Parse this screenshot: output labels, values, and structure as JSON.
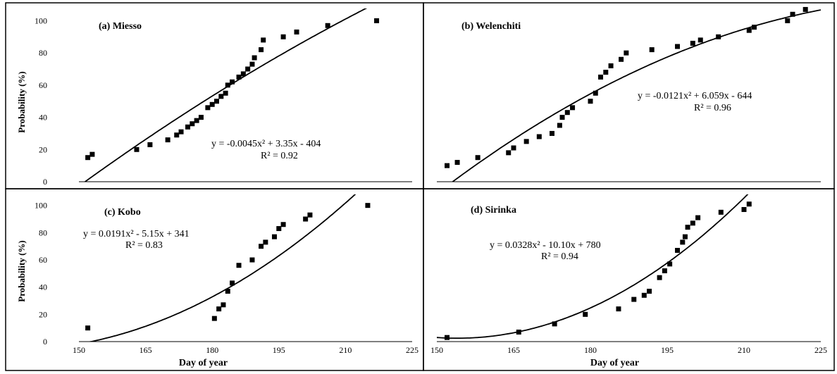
{
  "chart_data": [
    {
      "type": "scatter",
      "title": "(a) Miesso",
      "xlabel": "",
      "ylabel": "Probability (%)",
      "xlim": [
        150,
        225
      ],
      "ylim": [
        0,
        105
      ],
      "yticks": [
        "0",
        "20",
        "40",
        "60",
        "80",
        "100"
      ],
      "xticks": [],
      "equation": "y = -0.0045x² + 3.35x - 404",
      "r2": "R² = 0.92",
      "fit": {
        "a": -0.0045,
        "b": 3.35,
        "c": -404
      },
      "x": [
        152,
        153,
        163,
        166,
        170,
        172,
        173,
        174.5,
        175.5,
        176.5,
        177.5,
        179,
        180,
        181,
        182,
        183,
        183.5,
        184.5,
        186,
        187,
        188,
        189,
        189.5,
        191,
        191.5,
        196,
        199,
        206,
        217
      ],
      "y": [
        15,
        17,
        20,
        23,
        26,
        29,
        31,
        34,
        36,
        38,
        40,
        46,
        48,
        50,
        53,
        55,
        60,
        62,
        65,
        67,
        70,
        73,
        77,
        82,
        88,
        90,
        93,
        97,
        100
      ]
    },
    {
      "type": "scatter",
      "title": "(b) Welenchiti",
      "xlabel": "",
      "ylabel": "",
      "xlim": [
        150,
        225
      ],
      "ylim": [
        0,
        105
      ],
      "yticks": [],
      "xticks": [],
      "equation": "y = -0.0121x² + 6.059x - 644",
      "r2": "R² = 0.96",
      "fit": {
        "a": -0.0121,
        "b": 6.059,
        "c": -644
      },
      "x": [
        152,
        154,
        158,
        164,
        165,
        167.5,
        170,
        172.5,
        174,
        174.5,
        175.5,
        176.5,
        180,
        181,
        182,
        183,
        184,
        186,
        187,
        192,
        197,
        200,
        201.5,
        205,
        211,
        212,
        218.5,
        219.5,
        222
      ],
      "y": [
        10,
        12,
        15,
        18,
        21,
        25,
        28,
        30,
        35,
        40,
        43,
        46,
        50,
        55,
        65,
        68,
        72,
        76,
        80,
        82,
        84,
        86,
        88,
        90,
        94,
        96,
        100,
        104,
        107
      ]
    },
    {
      "type": "scatter",
      "title": "(c) Kobo",
      "xlabel": "Day of year",
      "ylabel": "Probability (%)",
      "xlim": [
        150,
        225
      ],
      "ylim": [
        0,
        105
      ],
      "yticks": [
        "0",
        "20",
        "40",
        "60",
        "80",
        "100"
      ],
      "xticks": [
        "150",
        "165",
        "180",
        "195",
        "210",
        "225"
      ],
      "equation": "y = 0.0191x² - 5.15x + 341",
      "r2": "R² = 0.83",
      "fit": {
        "a": 0.0191,
        "b": -5.15,
        "c": 341
      },
      "x": [
        152,
        180.5,
        181.5,
        182.5,
        183.5,
        184.5,
        186,
        189,
        191,
        192,
        194,
        195,
        196,
        201,
        202,
        215
      ],
      "y": [
        10,
        17,
        24,
        27,
        37,
        43,
        56,
        60,
        70,
        73,
        77,
        83,
        86,
        90,
        93,
        100
      ],
      "xlim_note": ""
    },
    {
      "type": "scatter",
      "title": "(d) Sirinka",
      "xlabel": "Day of year",
      "ylabel": "",
      "xlim": [
        150,
        225
      ],
      "ylim": [
        0,
        105
      ],
      "yticks": [],
      "xticks": [
        "150",
        "165",
        "180",
        "195",
        "210",
        "225"
      ],
      "equation": "y = 0.0328x² - 10.10x + 780",
      "r2": "R² = 0.94",
      "fit": {
        "a": 0.0328,
        "b": -10.1,
        "c": 780
      },
      "x": [
        152,
        166,
        173,
        179,
        185.5,
        188.5,
        190.5,
        191.5,
        193.5,
        194.5,
        195.5,
        197,
        198,
        198.5,
        199,
        200,
        201,
        205.5,
        210,
        211
      ],
      "y": [
        3,
        7,
        13,
        20,
        24,
        31,
        34,
        37,
        47,
        52,
        57,
        67,
        73,
        77,
        84,
        87,
        91,
        95,
        97,
        101
      ]
    }
  ]
}
